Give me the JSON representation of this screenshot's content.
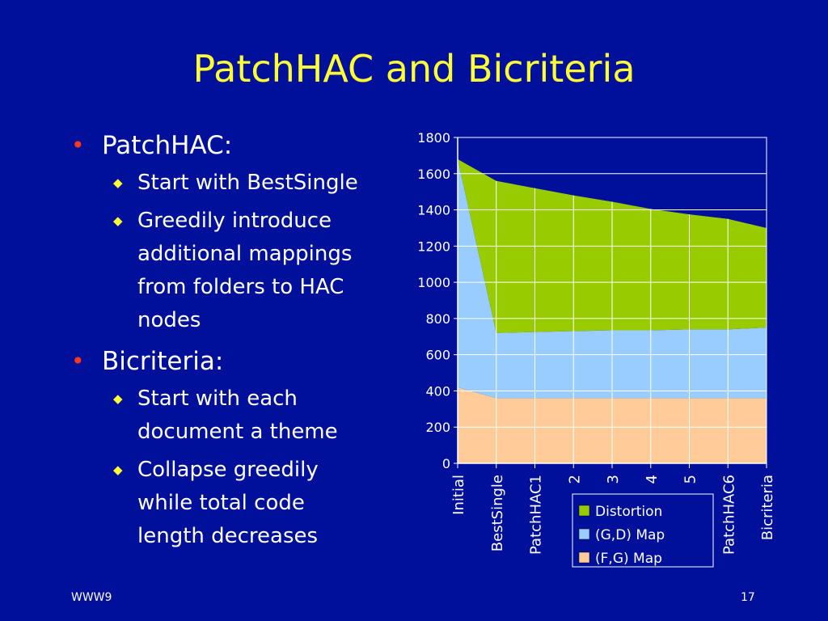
{
  "slide": {
    "title": "PatchHAC and Bicriteria",
    "bullets": [
      {
        "text": "PatchHAC:",
        "sub": [
          [
            "Start with BestSingle"
          ],
          [
            "Greedily introduce",
            "additional mappings",
            "from folders to HAC",
            "nodes"
          ]
        ]
      },
      {
        "text": "Bicriteria:",
        "sub": [
          [
            "Start with each",
            "document a theme"
          ],
          [
            "Collapse greedily",
            "while total code",
            "length decreases"
          ]
        ]
      }
    ],
    "footer_left": "WWW9",
    "footer_right": "17"
  },
  "colors": {
    "background": "#00109a",
    "title": "#ffff33",
    "distortion": "#99cc00",
    "gd_map": "#99ccff",
    "fg_map": "#ffcc99"
  },
  "chart_data": {
    "type": "area",
    "stacked": true,
    "categories": [
      "Initial",
      "BestSingle",
      "PatchHAC1",
      "2",
      "3",
      "4",
      "5",
      "PatchHAC6",
      "Bicriteria"
    ],
    "series": [
      {
        "name": "(F,G) Map",
        "values": [
          420,
          360,
          360,
          360,
          360,
          360,
          360,
          360,
          360
        ]
      },
      {
        "name": "(G,D) Map",
        "values": [
          1260,
          360,
          365,
          370,
          375,
          375,
          380,
          380,
          390
        ]
      },
      {
        "name": "Distortion",
        "values": [
          0,
          840,
          795,
          750,
          710,
          670,
          635,
          610,
          550
        ]
      }
    ],
    "yticks": [
      "0",
      "200",
      "400",
      "600",
      "800",
      "1000",
      "1200",
      "1400",
      "1600",
      "1800"
    ],
    "ylim": [
      0,
      1800
    ],
    "grid": true,
    "legend_position": "bottom-right",
    "legend_order": [
      "Distortion",
      "(G,D) Map",
      "(F,G) Map"
    ]
  }
}
